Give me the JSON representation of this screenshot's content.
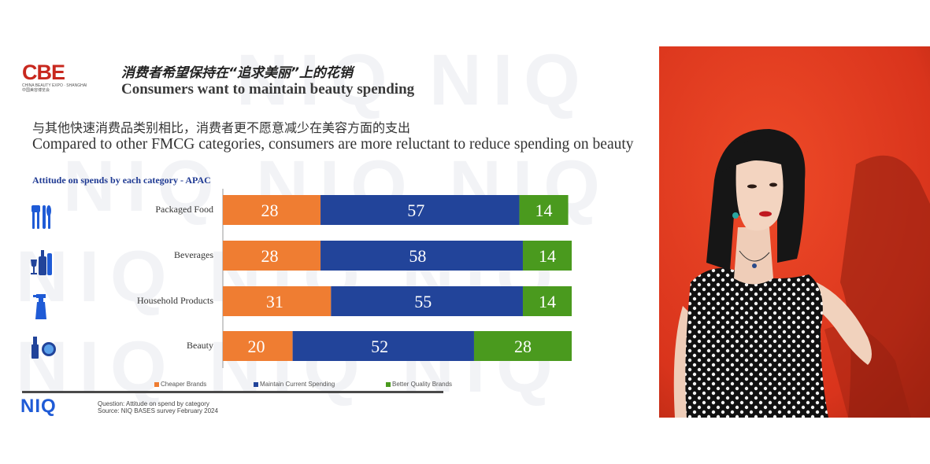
{
  "header": {
    "logo_text": "CBE",
    "logo_subtitle_en": "CHINA BEAUTY EXPO · SHANGHAI",
    "logo_subtitle_cn": "中国美容博览会",
    "title_cn": "消费者希望保持在“追求美丽”上的花销",
    "title_en": "Consumers want to maintain beauty spending"
  },
  "subtitle": {
    "cn": "与其他快速消费品类别相比，消费者更不愿意减少在美容方面的支出",
    "en": "Compared to other FMCG categories, consumers are more reluctant to reduce spending on beauty"
  },
  "watermark": {
    "text": "NIQ"
  },
  "chart_data": {
    "type": "bar",
    "orientation": "horizontal",
    "stacked": true,
    "title": "Attitude on spends by each category - APAC",
    "categories": [
      "Packaged Food",
      "Beverages",
      "Household Products",
      "Beauty"
    ],
    "category_icons": [
      "cutlery-icon",
      "bottles-icon",
      "spray-bottle-icon",
      "cosmetics-icon"
    ],
    "series": [
      {
        "name": "Cheaper Brands",
        "color": "#ef7d32",
        "values": [
          28,
          28,
          31,
          20
        ]
      },
      {
        "name": "Maintain Current Spending",
        "color": "#22449a",
        "values": [
          57,
          58,
          55,
          52
        ]
      },
      {
        "name": "Better Quality Brands",
        "color": "#4a9a1e",
        "values": [
          14,
          14,
          14,
          28
        ]
      }
    ],
    "xlim": [
      0,
      100
    ],
    "legend_position": "bottom"
  },
  "footer": {
    "brand": "NIQ",
    "question": "Question:  Attitude on spend by category",
    "source": "Source: NIQ BASES survey February 2024"
  },
  "photo": {
    "description_icon": "portrait-photo-icon"
  }
}
